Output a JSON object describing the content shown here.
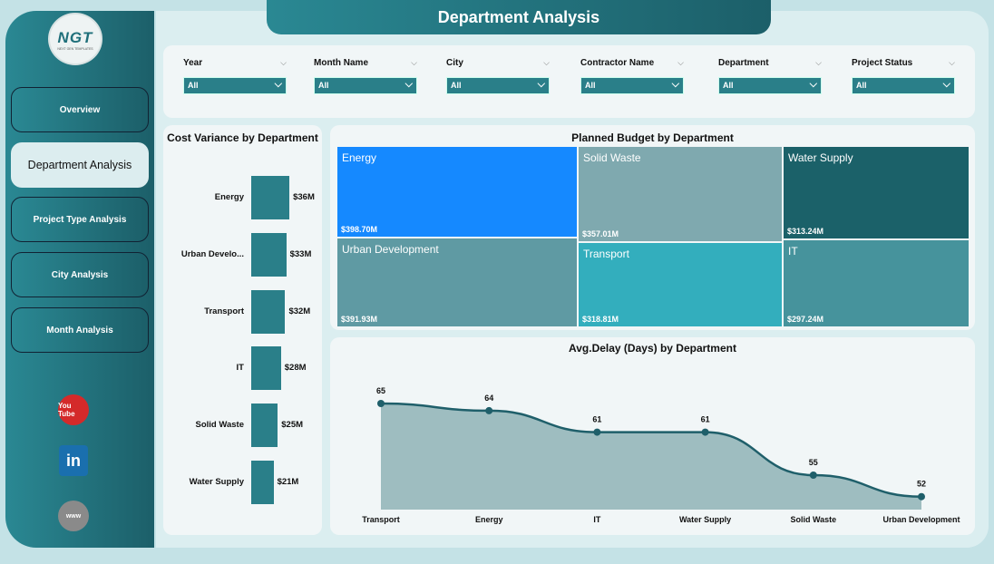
{
  "header": {
    "title": "Department Analysis"
  },
  "logo": {
    "text": "NGT",
    "subtitle": "NEXT GEN TEMPLATES"
  },
  "sidebar": {
    "items": [
      {
        "label": "Overview"
      },
      {
        "label": "Department Analysis",
        "active": true
      },
      {
        "label": "Project Type Analysis"
      },
      {
        "label": "City Analysis"
      },
      {
        "label": "Month Analysis"
      }
    ],
    "social": [
      {
        "icon": "youtube-icon",
        "label": "You Tube"
      },
      {
        "icon": "linkedin-icon",
        "label": "in"
      },
      {
        "icon": "globe-icon",
        "label": "www"
      }
    ]
  },
  "filters": [
    {
      "label": "Year",
      "value": "All"
    },
    {
      "label": "Month Name",
      "value": "All"
    },
    {
      "label": "City",
      "value": "All"
    },
    {
      "label": "Contractor Name",
      "value": "All"
    },
    {
      "label": "Department",
      "value": "All"
    },
    {
      "label": "Project Status",
      "value": "All"
    }
  ],
  "chart_data": [
    {
      "type": "bar",
      "title": "Cost Variance by Department",
      "categories": [
        "Energy",
        "Urban Develo...",
        "Transport",
        "IT",
        "Solid Waste",
        "Water Supply"
      ],
      "values": [
        36,
        33,
        32,
        28,
        25,
        21
      ],
      "labels": [
        "$36M",
        "$33M",
        "$32M",
        "$28M",
        "$25M",
        "$21M"
      ],
      "unit": "$M"
    },
    {
      "type": "treemap",
      "title": "Planned Budget by Department",
      "items": [
        {
          "name": "Energy",
          "value": 398.7,
          "label": "$398.70M"
        },
        {
          "name": "Urban Development",
          "value": 391.93,
          "label": "$391.93M"
        },
        {
          "name": "Solid Waste",
          "value": 357.01,
          "label": "$357.01M"
        },
        {
          "name": "Transport",
          "value": 318.81,
          "label": "$318.81M"
        },
        {
          "name": "Water Supply",
          "value": 313.24,
          "label": "$313.24M"
        },
        {
          "name": "IT",
          "value": 297.24,
          "label": "$297.24M"
        }
      ]
    },
    {
      "type": "area",
      "title": "Avg.Delay (Days) by Department",
      "categories": [
        "Transport",
        "Energy",
        "IT",
        "Water Supply",
        "Solid Waste",
        "Urban Development"
      ],
      "values": [
        65,
        64,
        61,
        61,
        55,
        52
      ]
    }
  ],
  "colors": {
    "accent": "#2a7f89",
    "treemap": [
      "#1589ff",
      "#5f9aa3",
      "#7fa9af",
      "#33aebd",
      "#1b6169",
      "#46939c"
    ]
  }
}
